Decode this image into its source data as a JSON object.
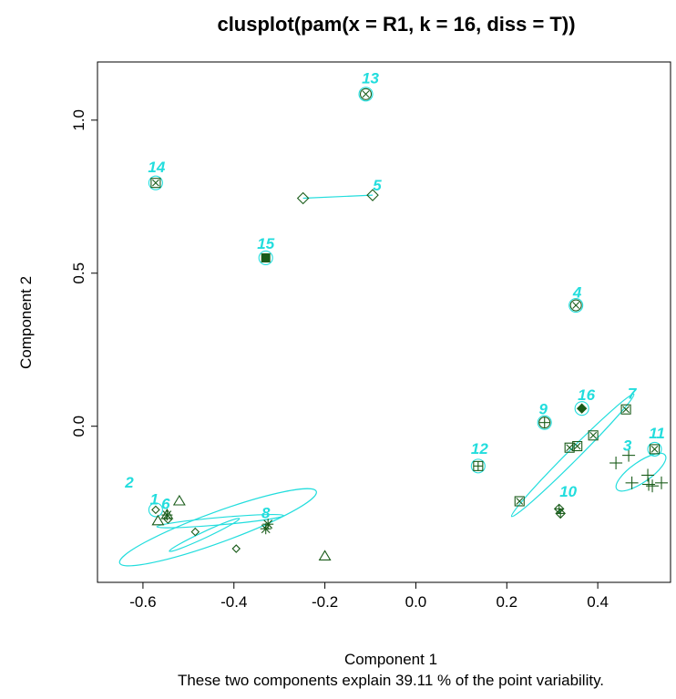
{
  "chart_data": {
    "type": "scatter",
    "title": "clusplot(pam(x = R1, k = 16, diss = T))",
    "xlabel": "Component 1",
    "ylabel": "Component 2",
    "subtitle": "These two components explain 39.11 % of the point variability.",
    "xlim": [
      -0.7,
      0.56
    ],
    "ylim": [
      -0.51,
      1.19
    ],
    "x_ticks": [
      -0.6,
      -0.4,
      -0.2,
      0.0,
      0.2,
      0.4
    ],
    "x_tick_labels": [
      "-0.6",
      "-0.4",
      "-0.2",
      "0.0",
      "0.2",
      "0.4"
    ],
    "y_ticks": [
      0.0,
      0.5,
      1.0
    ],
    "y_tick_labels": [
      "0.0",
      "0.5",
      "1.0"
    ],
    "grid": false,
    "colors": {
      "ellipse": "#22dddd",
      "points": "#1a5c1a",
      "labels": "#22dddd"
    },
    "clusters": [
      {
        "id": "1",
        "label_pos": [
          -0.575,
          -0.255
        ],
        "points": [
          [
            -0.572,
            -0.273
          ]
        ],
        "symbol": "diamond-small",
        "ellipse": null
      },
      {
        "id": "2",
        "label_pos": [
          -0.63,
          -0.2
        ],
        "points": [
          [
            -0.567,
            -0.31
          ],
          [
            -0.52,
            -0.245
          ],
          [
            -0.2,
            -0.425
          ],
          [
            -0.547,
            -0.29
          ]
        ],
        "symbol": "triangle",
        "ellipse": {
          "cx": -0.435,
          "cy": -0.33,
          "rx": 0.23,
          "ry": 0.05,
          "angle_deg": -20
        }
      },
      {
        "id": "3",
        "label_pos": [
          0.465,
          -0.08
        ],
        "points": [
          [
            0.44,
            -0.12
          ],
          [
            0.468,
            -0.095
          ],
          [
            0.51,
            -0.16
          ],
          [
            0.475,
            -0.185
          ],
          [
            0.512,
            -0.19
          ],
          [
            0.54,
            -0.185
          ],
          [
            0.52,
            -0.195
          ]
        ],
        "symbol": "plus",
        "ellipse": {
          "cx": 0.495,
          "cy": -0.15,
          "rx": 0.065,
          "ry": 0.033,
          "angle_deg": -35
        }
      },
      {
        "id": "4",
        "label_pos": [
          0.355,
          0.42
        ],
        "points": [
          [
            0.352,
            0.395
          ]
        ],
        "symbol": "circle-x",
        "ellipse": null
      },
      {
        "id": "5",
        "label_pos": [
          -0.085,
          0.77
        ],
        "points": [
          [
            -0.248,
            0.745
          ],
          [
            -0.095,
            0.755
          ]
        ],
        "symbol": "diamond",
        "ellipse": "segment"
      },
      {
        "id": "6",
        "label_pos": [
          -0.55,
          -0.27
        ],
        "points": [
          [
            -0.485,
            -0.345
          ],
          [
            -0.395,
            -0.4
          ],
          [
            -0.545,
            -0.305
          ]
        ],
        "symbol": "diamond-small",
        "ellipse": {
          "cx": -0.465,
          "cy": -0.355,
          "rx": 0.085,
          "ry": 0.01,
          "angle_deg": -25
        }
      },
      {
        "id": "7",
        "label_pos": [
          0.475,
          0.09
        ],
        "points": [
          [
            0.228,
            -0.245
          ],
          [
            0.462,
            0.055
          ],
          [
            0.338,
            -0.07
          ],
          [
            0.39,
            -0.03
          ],
          [
            0.355,
            -0.065
          ]
        ],
        "symbol": "square-x",
        "ellipse": {
          "cx": 0.345,
          "cy": -0.095,
          "rx": 0.19,
          "ry": 0.018,
          "angle_deg": -45
        }
      },
      {
        "id": "8",
        "label_pos": [
          -0.33,
          -0.3
        ],
        "points": [
          [
            -0.33,
            -0.335
          ],
          [
            -0.325,
            -0.32
          ],
          [
            -0.547,
            -0.29
          ]
        ],
        "symbol": "asterisk",
        "ellipse": {
          "cx": -0.43,
          "cy": -0.31,
          "rx": 0.14,
          "ry": 0.012,
          "angle_deg": -5
        }
      },
      {
        "id": "9",
        "label_pos": [
          0.28,
          0.04
        ],
        "points": [
          [
            0.283,
            0.012
          ]
        ],
        "symbol": "circle-plus",
        "ellipse": null
      },
      {
        "id": "10",
        "label_pos": [
          0.335,
          -0.23
        ],
        "points": [
          [
            0.315,
            -0.27
          ],
          [
            0.318,
            -0.285
          ]
        ],
        "symbol": "diamond-plus",
        "ellipse": "segment"
      },
      {
        "id": "11",
        "label_pos": [
          0.53,
          -0.04
        ],
        "points": [
          [
            0.525,
            -0.075
          ]
        ],
        "symbol": "square-x",
        "ellipse": null
      },
      {
        "id": "12",
        "label_pos": [
          0.14,
          -0.09
        ],
        "points": [
          [
            0.137,
            -0.13
          ]
        ],
        "symbol": "square-plus",
        "ellipse": null
      },
      {
        "id": "13",
        "label_pos": [
          -0.1,
          1.12
        ],
        "points": [
          [
            -0.11,
            1.085
          ]
        ],
        "symbol": "circle-x",
        "ellipse": null
      },
      {
        "id": "14",
        "label_pos": [
          -0.57,
          0.83
        ],
        "points": [
          [
            -0.572,
            0.795
          ]
        ],
        "symbol": "square-x",
        "ellipse": null
      },
      {
        "id": "15",
        "label_pos": [
          -0.33,
          0.58
        ],
        "points": [
          [
            -0.33,
            0.55
          ]
        ],
        "symbol": "filled-square",
        "ellipse": null
      },
      {
        "id": "16",
        "label_pos": [
          0.375,
          0.085
        ],
        "points": [
          [
            0.365,
            0.058
          ]
        ],
        "symbol": "filled-diamond",
        "ellipse": null
      }
    ]
  }
}
